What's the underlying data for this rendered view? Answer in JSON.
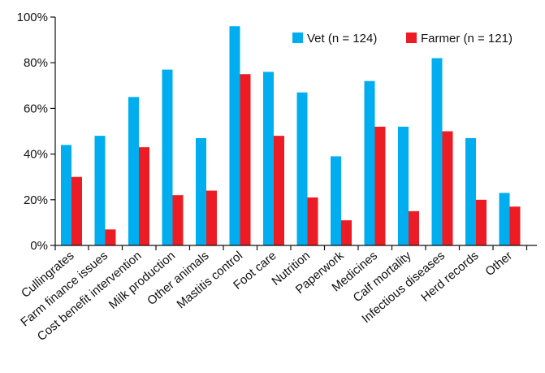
{
  "chart_data": {
    "type": "bar",
    "title": "",
    "xlabel": "",
    "ylabel": "",
    "ylim": [
      0,
      100
    ],
    "yticks": [
      0,
      20,
      40,
      60,
      80,
      100
    ],
    "ytick_suffix": "%",
    "grid": false,
    "legend_position": "top-right",
    "categories": [
      "Cullingrates",
      "Farm finance issues",
      "Cost benefit intervention",
      "Milk production",
      "Other animals",
      "Mastitis control",
      "Foot care",
      "Nutrition",
      "Paperwork",
      "Medicines",
      "Calf mortality",
      "Infectious diseases",
      "Herd records",
      "Other"
    ],
    "series": [
      {
        "name": "Vet (n = 124)",
        "color": "#00aeef",
        "values": [
          44,
          48,
          65,
          77,
          47,
          96,
          76,
          67,
          39,
          72,
          52,
          82,
          47,
          23
        ]
      },
      {
        "name": "Farmer (n = 121)",
        "color": "#ed1c24",
        "values": [
          30,
          7,
          43,
          22,
          24,
          75,
          48,
          21,
          11,
          52,
          15,
          50,
          20,
          17
        ]
      }
    ]
  }
}
